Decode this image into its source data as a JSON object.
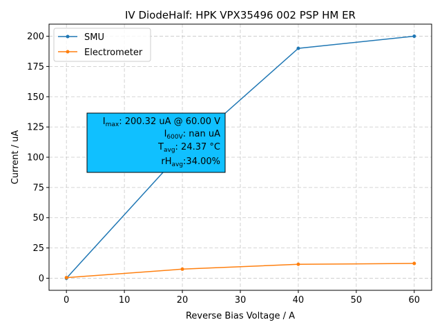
{
  "chart_data": {
    "type": "line",
    "title": "IV DiodeHalf: HPK VPX35496 002 PSP HM ER",
    "xlabel": "Reverse Bias Voltage / A",
    "ylabel": "Current / uA",
    "xlim": [
      -3,
      63
    ],
    "ylim": [
      -10,
      210
    ],
    "xticks": [
      0,
      10,
      20,
      30,
      40,
      50,
      60
    ],
    "yticks": [
      0,
      25,
      50,
      75,
      100,
      125,
      150,
      175,
      200
    ],
    "grid": true,
    "legend_position": "top-left",
    "series": [
      {
        "name": "SMU",
        "color": "#1f77b4",
        "x": [
          0,
          20,
          40,
          60
        ],
        "y": [
          0,
          105,
          190,
          200
        ]
      },
      {
        "name": "Electrometer",
        "color": "#ff7f0e",
        "x": [
          0,
          20,
          40,
          60
        ],
        "y": [
          0.5,
          7.5,
          11.5,
          12.2
        ]
      }
    ],
    "annotation": {
      "background": "#10c0ff",
      "lines": [
        {
          "main": "I",
          "sub": "max",
          "rest": ": 200.32 uA @  60.00 V"
        },
        {
          "main": "I",
          "sub": "600V",
          "rest": ":      nan uA"
        },
        {
          "main": "T",
          "sub": "avg",
          "rest": ": 24.37  °C"
        },
        {
          "main": "rH",
          "sub": "avg",
          "rest": ":34.00%"
        }
      ]
    }
  }
}
